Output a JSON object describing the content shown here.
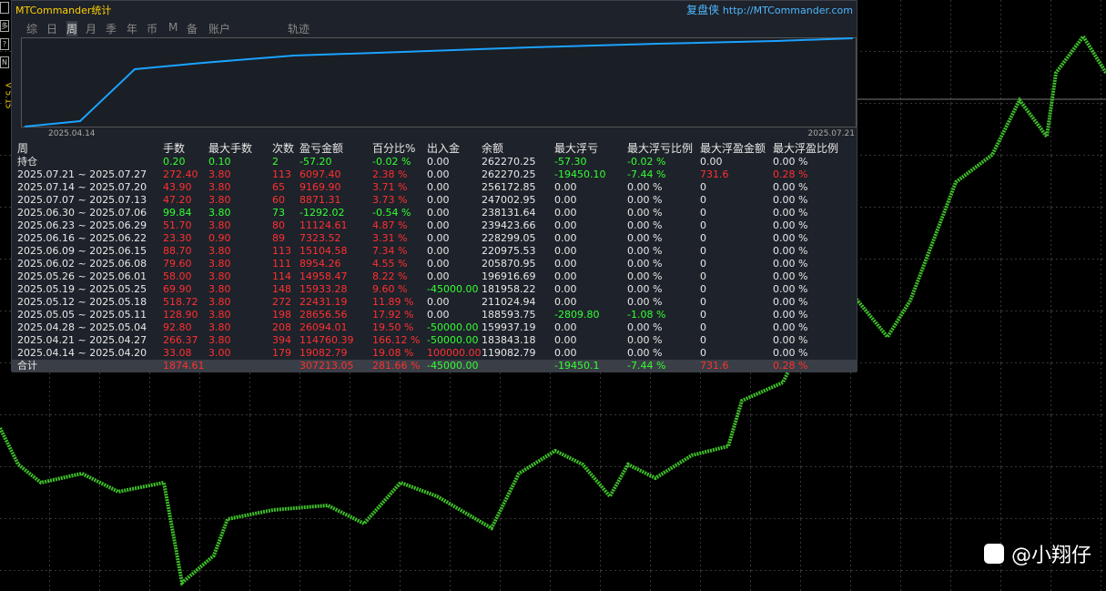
{
  "header": {
    "title": "MTCommander统计",
    "brand": "复盘侠",
    "url": "http://MTCommander.com"
  },
  "side": {
    "buttons": [
      "多",
      "?",
      "N"
    ],
    "version": "V 5.15"
  },
  "tabs": [
    "综",
    "日",
    "周",
    "月",
    "季",
    "年",
    "币",
    "M",
    "备",
    "账户",
    "轨迹"
  ],
  "equity": {
    "start_label": "2025.04.14",
    "end_label": "2025.07.21"
  },
  "table": {
    "columns": [
      "周",
      "手数",
      "最大手数",
      "次数",
      "盈亏金额",
      "百分比%",
      "出入金",
      "余额",
      "最大浮亏",
      "最大浮亏比例",
      "最大浮盈金额",
      "最大浮盈比例"
    ],
    "rows": [
      [
        "持仓",
        "0.20",
        "0.10",
        "2",
        "-57.20",
        "-0.02 %",
        "0.00",
        "262270.25",
        "-57.30",
        "-0.02 %",
        "0.00",
        "0.00 %"
      ],
      [
        "2025.07.21 ~ 2025.07.27",
        "272.40",
        "3.80",
        "113",
        "6097.40",
        "2.38 %",
        "0.00",
        "262270.25",
        "-19450.10",
        "-7.44 %",
        "731.6",
        "0.28 %"
      ],
      [
        "2025.07.14 ~ 2025.07.20",
        "43.90",
        "3.80",
        "65",
        "9169.90",
        "3.71 %",
        "0.00",
        "256172.85",
        "0.00",
        "0.00 %",
        "0",
        "0.00 %"
      ],
      [
        "2025.07.07 ~ 2025.07.13",
        "47.20",
        "3.80",
        "60",
        "8871.31",
        "3.73 %",
        "0.00",
        "247002.95",
        "0.00",
        "0.00 %",
        "0",
        "0.00 %"
      ],
      [
        "2025.06.30 ~ 2025.07.06",
        "99.84",
        "3.80",
        "73",
        "-1292.02",
        "-0.54 %",
        "0.00",
        "238131.64",
        "0.00",
        "0.00 %",
        "0",
        "0.00 %"
      ],
      [
        "2025.06.23 ~ 2025.06.29",
        "51.70",
        "3.80",
        "80",
        "11124.61",
        "4.87 %",
        "0.00",
        "239423.66",
        "0.00",
        "0.00 %",
        "0",
        "0.00 %"
      ],
      [
        "2025.06.16 ~ 2025.06.22",
        "23.30",
        "0.90",
        "89",
        "7323.52",
        "3.31 %",
        "0.00",
        "228299.05",
        "0.00",
        "0.00 %",
        "0",
        "0.00 %"
      ],
      [
        "2025.06.09 ~ 2025.06.15",
        "88.70",
        "3.80",
        "113",
        "15104.58",
        "7.34 %",
        "0.00",
        "220975.53",
        "0.00",
        "0.00 %",
        "0",
        "0.00 %"
      ],
      [
        "2025.06.02 ~ 2025.06.08",
        "79.60",
        "3.80",
        "111",
        "8954.26",
        "4.55 %",
        "0.00",
        "205870.95",
        "0.00",
        "0.00 %",
        "0",
        "0.00 %"
      ],
      [
        "2025.05.26 ~ 2025.06.01",
        "58.00",
        "3.80",
        "114",
        "14958.47",
        "8.22 %",
        "0.00",
        "196916.69",
        "0.00",
        "0.00 %",
        "0",
        "0.00 %"
      ],
      [
        "2025.05.19 ~ 2025.05.25",
        "69.90",
        "3.80",
        "148",
        "15933.28",
        "9.60 %",
        "-45000.00",
        "181958.22",
        "0.00",
        "0.00 %",
        "0",
        "0.00 %"
      ],
      [
        "2025.05.12 ~ 2025.05.18",
        "518.72",
        "3.80",
        "272",
        "22431.19",
        "11.89 %",
        "0.00",
        "211024.94",
        "0.00",
        "0.00 %",
        "0",
        "0.00 %"
      ],
      [
        "2025.05.05 ~ 2025.05.11",
        "128.90",
        "3.80",
        "198",
        "28656.56",
        "17.92 %",
        "0.00",
        "188593.75",
        "-2809.80",
        "-1.08 %",
        "0",
        "0.00 %"
      ],
      [
        "2025.04.28 ~ 2025.05.04",
        "92.80",
        "3.80",
        "208",
        "26094.01",
        "19.50 %",
        "-50000.00",
        "159937.19",
        "0.00",
        "0.00 %",
        "0",
        "0.00 %"
      ],
      [
        "2025.04.21 ~ 2025.04.27",
        "266.37",
        "3.80",
        "394",
        "114760.39",
        "166.12 %",
        "-50000.00",
        "183843.18",
        "0.00",
        "0.00 %",
        "0",
        "0.00 %"
      ],
      [
        "2025.04.14 ~ 2025.04.20",
        "33.08",
        "3.00",
        "179",
        "19082.79",
        "19.08 %",
        "100000.00",
        "119082.79",
        "0.00",
        "0.00 %",
        "0",
        "0.00 %"
      ]
    ],
    "total": [
      "合计",
      "1874.61",
      null,
      null,
      "307213.05",
      "281.66 %",
      "-45000.00",
      null,
      "-19450.1",
      "-7.44 %",
      "731.6",
      "0.28 %"
    ]
  },
  "watermark": "@小翔仔"
}
